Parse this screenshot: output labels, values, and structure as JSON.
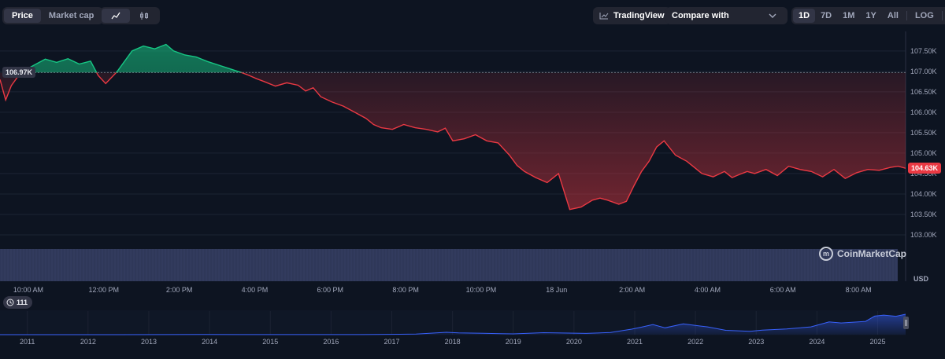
{
  "toolbar": {
    "metric_tabs": [
      "Price",
      "Market cap"
    ],
    "active_metric": "Price",
    "chart_type_icons": [
      "line-chart-icon",
      "candlestick-icon"
    ],
    "tradingview_label": "TradingView",
    "compare_label": "Compare with",
    "ranges": [
      "1D",
      "7D",
      "1M",
      "1Y",
      "All"
    ],
    "active_range": "1D",
    "log_label": "LOG",
    "more_label": "···"
  },
  "main_chart": {
    "reference_price_label": "106.97K",
    "current_price_label": "104.63K",
    "currency_label": "USD",
    "brand_label": "CoinMarketCap",
    "colors": {
      "up": "#16c784",
      "down": "#ea3943",
      "volume": "#2f3859",
      "navigator": "#3861fb"
    }
  },
  "navigator": {
    "event_count_label": "111"
  },
  "chart_data": [
    {
      "type": "area",
      "ylabel": "USD",
      "ylim": [
        102750,
        107900
      ],
      "y_ticks": [
        "103.00K",
        "103.50K",
        "104.00K",
        "104.50K",
        "105.00K",
        "105.50K",
        "106.00K",
        "106.50K",
        "107.00K",
        "107.50K"
      ],
      "y_tick_values": [
        103000,
        103500,
        104000,
        104500,
        105000,
        105500,
        106000,
        106500,
        107000,
        107500
      ],
      "x_ticks": [
        "10:00 AM",
        "12:00 PM",
        "2:00 PM",
        "4:00 PM",
        "6:00 PM",
        "8:00 PM",
        "10:00 PM",
        "18 Jun",
        "2:00 AM",
        "4:00 AM",
        "6:00 AM",
        "8:00 AM"
      ],
      "x_tick_hours": [
        0.75,
        2.75,
        4.75,
        6.75,
        8.75,
        10.75,
        12.75,
        14.75,
        16.75,
        18.75,
        20.75,
        22.75
      ],
      "x_range_hours": [
        0,
        24
      ],
      "reference_value": 106970,
      "series": [
        {
          "hours": [
            0,
            0.15,
            0.3,
            0.55,
            0.9,
            1.2,
            1.5,
            1.8,
            2.1,
            2.4,
            2.6,
            2.8,
            3.1,
            3.5,
            3.8,
            4.1,
            4.4,
            4.6,
            4.9,
            5.2,
            5.5,
            5.8,
            6.1,
            6.4,
            6.6,
            6.8,
            7.0,
            7.3,
            7.6,
            7.9,
            8.1,
            8.3,
            8.5,
            8.8,
            9.1,
            9.4,
            9.7,
            9.9,
            10.1,
            10.4,
            10.7,
            11.0,
            11.3,
            11.6,
            11.8,
            12.0,
            12.3,
            12.6,
            12.9,
            13.2,
            13.5,
            13.7,
            13.9,
            14.2,
            14.5,
            14.8,
            15.1,
            15.4,
            15.7,
            15.9,
            16.1,
            16.4,
            16.6,
            16.8,
            17.0,
            17.2,
            17.4,
            17.6,
            17.9,
            18.2,
            18.4,
            18.6,
            18.9,
            19.2,
            19.4,
            19.6,
            19.8,
            20.0,
            20.3,
            20.6,
            20.9,
            21.2,
            21.5,
            21.8,
            22.1,
            22.4,
            22.7,
            23.0,
            23.3,
            23.6,
            23.8,
            24.0
          ],
          "values": [
            106800,
            106300,
            106650,
            106970,
            107150,
            107300,
            107220,
            107310,
            107180,
            107250,
            106900,
            106700,
            106990,
            107500,
            107620,
            107550,
            107660,
            107500,
            107400,
            107350,
            107240,
            107150,
            107060,
            106970,
            106900,
            106820,
            106750,
            106640,
            106720,
            106660,
            106520,
            106600,
            106380,
            106250,
            106150,
            106000,
            105850,
            105700,
            105620,
            105580,
            105700,
            105620,
            105580,
            105520,
            105610,
            105300,
            105350,
            105450,
            105300,
            105250,
            104950,
            104700,
            104550,
            104400,
            104280,
            104500,
            103620,
            103680,
            103850,
            103900,
            103850,
            103750,
            103820,
            104200,
            104550,
            104800,
            105150,
            105300,
            104950,
            104800,
            104650,
            104500,
            104420,
            104550,
            104400,
            104480,
            104550,
            104500,
            104600,
            104450,
            104680,
            104600,
            104550,
            104420,
            104600,
            104380,
            104520,
            104600,
            104580,
            104650,
            104680,
            104630
          ]
        }
      ]
    },
    {
      "type": "area",
      "ylabel": "",
      "x_ticks": [
        "2011",
        "2012",
        "2013",
        "2014",
        "2015",
        "2016",
        "2017",
        "2018",
        "2019",
        "2020",
        "2021",
        "2022",
        "2023",
        "2024",
        "2025"
      ],
      "x_tick_values": [
        2011,
        2012,
        2013,
        2014,
        2015,
        2016,
        2017,
        2018,
        2019,
        2020,
        2021,
        2022,
        2023,
        2024,
        2025
      ],
      "x_range": [
        2010.55,
        2025.46
      ],
      "series": [
        {
          "x": [
            2010.55,
            2011.5,
            2012.5,
            2013.3,
            2013.9,
            2014.5,
            2015.5,
            2016.5,
            2017.4,
            2017.9,
            2018.1,
            2018.5,
            2019.0,
            2019.5,
            2019.9,
            2020.2,
            2020.6,
            2020.95,
            2021.1,
            2021.3,
            2021.5,
            2021.8,
            2022.0,
            2022.2,
            2022.5,
            2022.9,
            2023.1,
            2023.5,
            2023.9,
            2024.2,
            2024.4,
            2024.8,
            2024.95,
            2025.1,
            2025.3,
            2025.46
          ],
          "values": [
            0,
            50,
            100,
            300,
            800,
            500,
            300,
            600,
            3000,
            12000,
            9000,
            7000,
            4000,
            10000,
            8000,
            6500,
            11000,
            28000,
            38000,
            52000,
            35000,
            55000,
            47000,
            40000,
            22000,
            17000,
            23000,
            29000,
            40000,
            65000,
            60000,
            68000,
            95000,
            100000,
            94000,
            104600
          ]
        }
      ]
    }
  ]
}
